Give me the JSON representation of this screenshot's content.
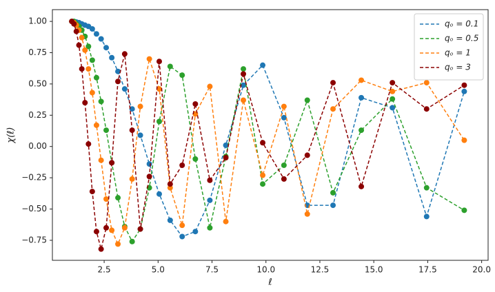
{
  "chart_data": {
    "type": "line",
    "x_label": "ℓ",
    "y_label": "χ(ℓ)",
    "x": [
      1.0,
      1.1,
      1.21,
      1.331,
      1.464,
      1.611,
      1.772,
      1.949,
      2.144,
      2.358,
      2.594,
      2.853,
      3.138,
      3.452,
      3.797,
      4.177,
      4.595,
      5.054,
      5.56,
      6.116,
      6.727,
      7.4,
      8.14,
      8.954,
      9.85,
      10.835,
      11.918,
      13.11,
      14.421,
      15.863,
      17.449,
      19.194
    ],
    "series": [
      {
        "name": "qₒ = 0.1",
        "color": "#1f77b4",
        "values": [
          1.0,
          1.0,
          0.995,
          0.99,
          0.98,
          0.97,
          0.96,
          0.94,
          0.9,
          0.86,
          0.79,
          0.71,
          0.6,
          0.46,
          0.3,
          0.09,
          -0.14,
          -0.38,
          -0.59,
          -0.72,
          -0.68,
          -0.43,
          0.01,
          0.49,
          0.65,
          0.23,
          -0.47,
          -0.47,
          0.39,
          0.31,
          -0.56,
          0.44
        ]
      },
      {
        "name": "qₒ = 0.5",
        "color": "#2ca02c",
        "values": [
          1.0,
          1.0,
          0.98,
          0.96,
          0.93,
          0.88,
          0.8,
          0.69,
          0.55,
          0.36,
          0.13,
          -0.13,
          -0.41,
          -0.64,
          -0.76,
          -0.66,
          -0.33,
          0.2,
          0.64,
          0.57,
          -0.1,
          -0.65,
          -0.08,
          0.62,
          -0.3,
          -0.15,
          0.37,
          -0.37,
          0.13,
          0.38,
          -0.33,
          -0.51
        ]
      },
      {
        "name": "qₒ = 1",
        "color": "#ff7f0e",
        "values": [
          1.0,
          0.99,
          0.97,
          0.93,
          0.87,
          0.77,
          0.62,
          0.43,
          0.17,
          -0.11,
          -0.42,
          -0.67,
          -0.78,
          -0.65,
          -0.26,
          0.32,
          0.7,
          0.46,
          -0.33,
          -0.63,
          0.26,
          0.48,
          -0.6,
          0.37,
          -0.23,
          0.32,
          -0.54,
          0.3,
          0.53,
          0.44,
          0.51,
          0.05
        ]
      },
      {
        "name": "qₒ = 3",
        "color": "#8b0000",
        "values": [
          1.0,
          0.98,
          0.92,
          0.81,
          0.62,
          0.35,
          0.02,
          -0.36,
          -0.68,
          -0.82,
          -0.65,
          -0.13,
          0.52,
          0.74,
          0.13,
          -0.66,
          -0.24,
          0.68,
          -0.3,
          -0.15,
          0.34,
          -0.27,
          -0.09,
          0.58,
          0.03,
          -0.26,
          -0.07,
          0.51,
          -0.32,
          0.51,
          0.3,
          0.49
        ]
      }
    ],
    "xlim": [
      0.1,
      20.3
    ],
    "ylim": [
      -0.91,
      1.094
    ],
    "xticks": [
      2.5,
      {
        "value": 5,
        "label": "5.0"
      },
      7.5,
      {
        "value": 10,
        "label": "10.0"
      },
      12.5,
      {
        "value": 15,
        "label": "15.0"
      },
      17.5,
      {
        "value": 20,
        "label": "20.0"
      }
    ],
    "yticks": [
      {
        "value": -0.75,
        "label": "−0.75"
      },
      {
        "value": -0.5,
        "label": "−0.50"
      },
      {
        "value": -0.25,
        "label": "−0.25"
      },
      {
        "value": 0,
        "label": "0.00"
      },
      {
        "value": 0.25,
        "label": "0.25"
      },
      {
        "value": 0.5,
        "label": "0.50"
      },
      {
        "value": 0.75,
        "label": "0.75"
      },
      {
        "value": 1,
        "label": "1.00"
      }
    ],
    "legend": "upper right",
    "grid": false
  }
}
